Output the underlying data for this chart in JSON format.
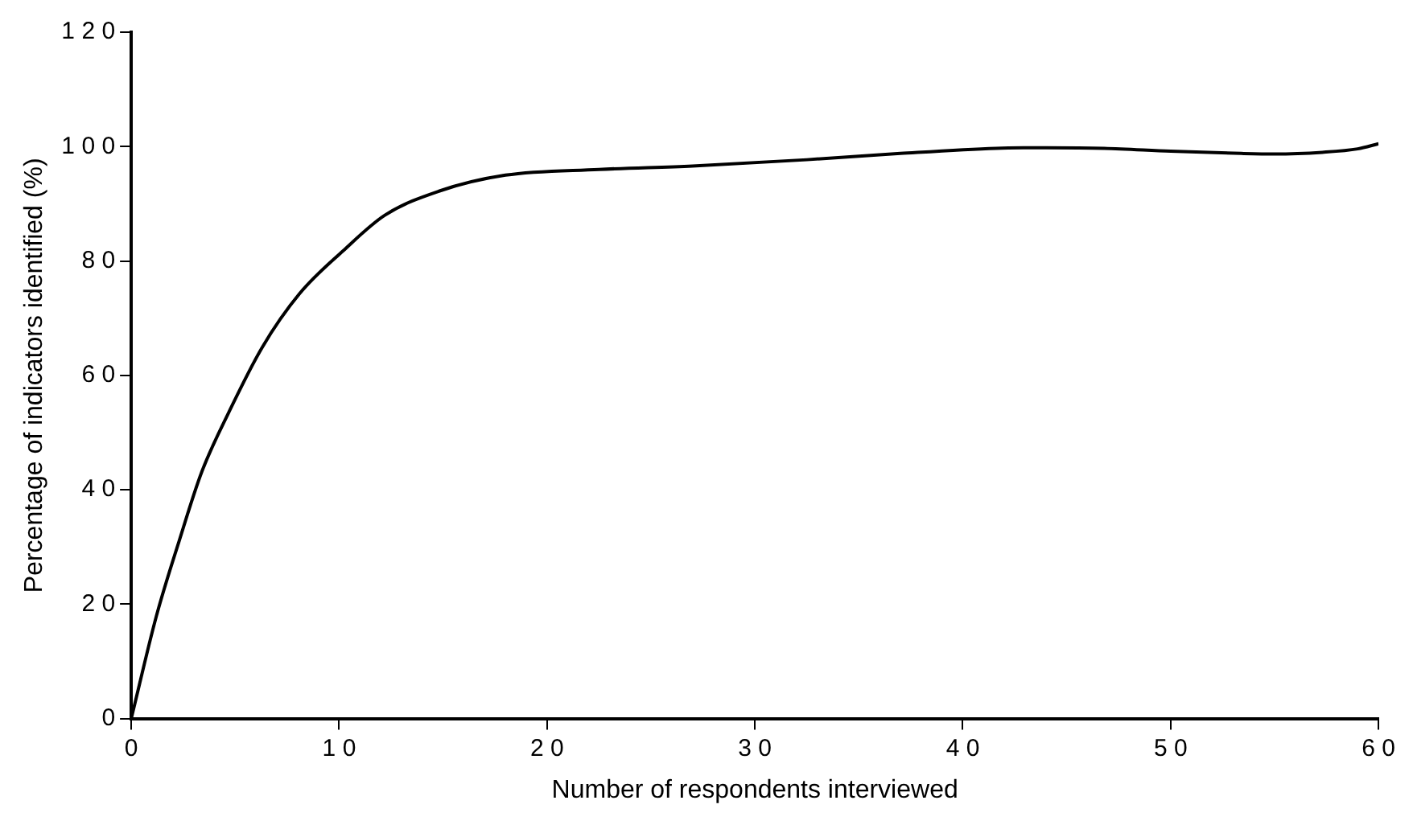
{
  "chart_data": {
    "type": "line",
    "xlabel": "Number of respondents interviewed",
    "ylabel": "Percentage of indicators identified (%)",
    "series": [
      {
        "color": "#000000",
        "x": [
          0,
          1.2,
          2.3,
          3.4,
          4.7,
          6.3,
          8.1,
          10.2,
          12.2,
          14.8,
          18,
          22.5,
          27,
          32.5,
          37,
          41.6,
          44,
          46.8,
          50,
          53.4,
          55,
          57.3,
          59,
          60
        ],
        "values": [
          0,
          17.8,
          31,
          43.2,
          53.6,
          64.9,
          74.3,
          81.8,
          88,
          92.2,
          95,
          96,
          96.6,
          97.7,
          98.8,
          99.7,
          99.8,
          99.7,
          99.2,
          98.8,
          98.7,
          99,
          99.6,
          100.5
        ]
      }
    ],
    "xlim": [
      0,
      60
    ],
    "xticks": [
      0,
      10,
      20,
      30,
      40,
      50,
      60
    ],
    "ylim": [
      0,
      120
    ],
    "yticks": [
      0,
      20,
      40,
      60,
      80,
      100,
      120
    ],
    "grid": false,
    "legend": false,
    "marker": "none",
    "line_style": "solid"
  }
}
